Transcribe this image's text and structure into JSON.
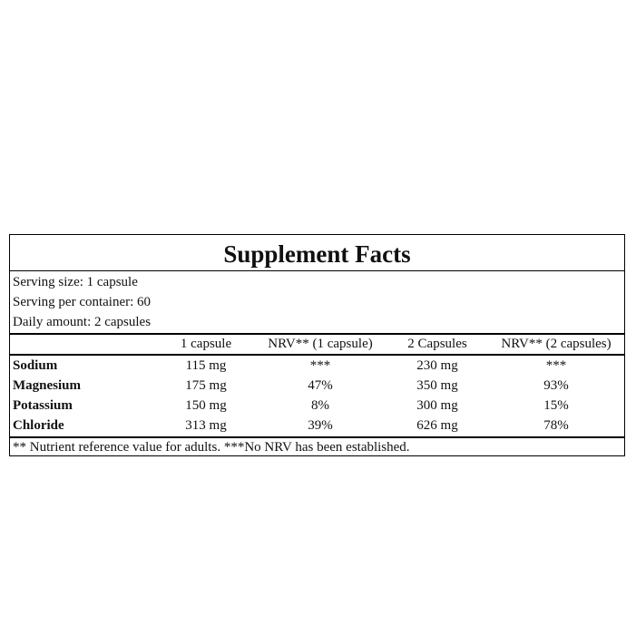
{
  "title": "Supplement Facts",
  "serving": [
    "Serving size: 1 capsule",
    "Serving per container: 60",
    "Daily amount: 2 capsules"
  ],
  "table": {
    "header": [
      "",
      "1 capsule",
      "NRV** (1 capsule)",
      "2 Capsules",
      "NRV** (2 capsules)"
    ],
    "rows": [
      [
        "Sodium",
        "115 mg",
        "***",
        "230 mg",
        "***"
      ],
      [
        "Magnesium",
        "175 mg",
        "47%",
        "350 mg",
        "93%"
      ],
      [
        "Potassium",
        "150 mg",
        "8%",
        "300 mg",
        "15%"
      ],
      [
        "Chloride",
        "313 mg",
        "39%",
        "626 mg",
        "78%"
      ]
    ]
  },
  "footnote": "** Nutrient reference value for adults. ***No NRV has been established."
}
